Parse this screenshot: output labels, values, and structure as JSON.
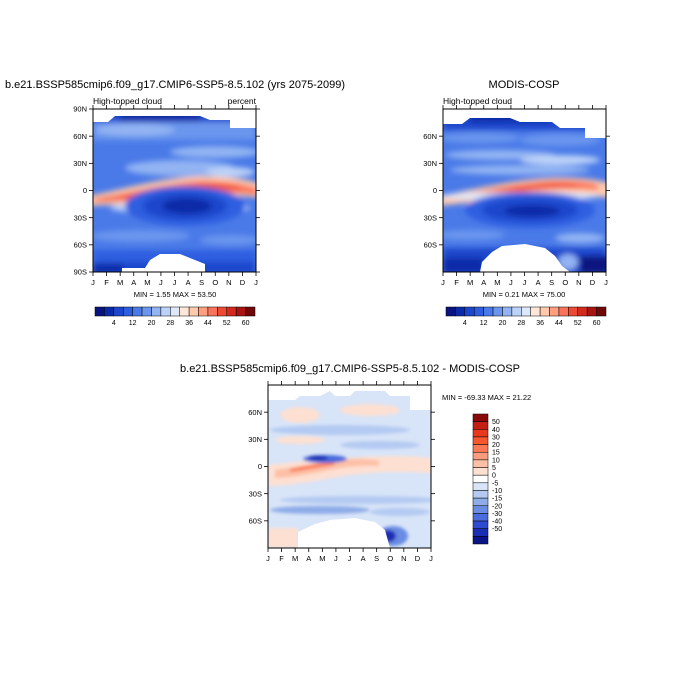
{
  "panels": [
    {
      "id": "model",
      "title": "b.e21.BSSP585cmip6.f09_g17.CMIP6-SSP5-8.5.102 (yrs 2075-2099)",
      "left_label": "High-topped cloud",
      "right_label": "percent",
      "stats": "MIN =   1.55 MAX =  53.50",
      "yticks": [
        "90N",
        "60N",
        "30N",
        "0",
        "30S",
        "60S",
        "90S"
      ]
    },
    {
      "id": "obs",
      "title": "MODIS-COSP",
      "left_label": "High-topped cloud",
      "right_label": "",
      "stats": "MIN =   0.21 MAX =  75.00",
      "yticks": [
        "60N",
        "30N",
        "0",
        "30S",
        "60S"
      ]
    },
    {
      "id": "diff",
      "title": "b.e21.BSSP585cmip6.f09_g17.CMIP6-SSP5-8.5.102 - MODIS-COSP",
      "left_label": "",
      "right_label": "",
      "stats": "MIN = -69.33 MAX =  21.22",
      "yticks": [
        "60N",
        "30N",
        "0",
        "30S",
        "60S"
      ]
    }
  ],
  "months": [
    "J",
    "F",
    "M",
    "A",
    "M",
    "J",
    "J",
    "A",
    "S",
    "O",
    "N",
    "D",
    "J"
  ],
  "colorbars": {
    "abs": {
      "labels": [
        "4",
        "12",
        "20",
        "28",
        "36",
        "44",
        "52",
        "60"
      ],
      "colors": [
        "#0a1480",
        "#0a2aa8",
        "#1c46cc",
        "#2e5ee0",
        "#4a7ae8",
        "#6b96ee",
        "#92b4f3",
        "#bcd2f8",
        "#dde8fa",
        "#ffe6d6",
        "#ffc9ad",
        "#ff9f80",
        "#fb7358",
        "#ee4a33",
        "#d42a1e",
        "#a8140f",
        "#700808"
      ]
    },
    "diff": {
      "labels": [
        "50",
        "40",
        "30",
        "20",
        "15",
        "10",
        "5",
        "0",
        "-5",
        "-10",
        "-15",
        "-20",
        "-30",
        "-40",
        "-50"
      ],
      "colors": [
        "#8a0a0a",
        "#c41e14",
        "#e8391e",
        "#f8562e",
        "#fb7a55",
        "#fc9c7e",
        "#fdc0a6",
        "#fde0d2",
        "#ffffff",
        "#d8e4f8",
        "#b4caf2",
        "#8eace8",
        "#6a8ce2",
        "#4a6cdc",
        "#2e4ad2",
        "#1a2eb4",
        "#0a1484"
      ]
    }
  },
  "chart_data": [
    {
      "type": "heatmap",
      "title": "b.e21.BSSP585cmip6.f09_g17.CMIP6-SSP5-8.5.102 (yrs 2075-2099)",
      "variable": "High-topped cloud",
      "units": "percent",
      "x": [
        "J",
        "F",
        "M",
        "A",
        "M",
        "J",
        "J",
        "A",
        "S",
        "O",
        "N",
        "D",
        "J"
      ],
      "y_ticks": [
        "90N",
        "60N",
        "30N",
        "0",
        "30S",
        "60S",
        "90S"
      ],
      "min": 1.55,
      "max": 53.5,
      "contour_levels": [
        4,
        8,
        12,
        16,
        20,
        24,
        28,
        32,
        36,
        40,
        44,
        48,
        52,
        56,
        60
      ]
    },
    {
      "type": "heatmap",
      "title": "MODIS-COSP",
      "variable": "High-topped cloud",
      "x": [
        "J",
        "F",
        "M",
        "A",
        "M",
        "J",
        "J",
        "A",
        "S",
        "O",
        "N",
        "D",
        "J"
      ],
      "y_ticks": [
        "60N",
        "30N",
        "0",
        "30S",
        "60S"
      ],
      "min": 0.21,
      "max": 75.0,
      "contour_levels": [
        4,
        8,
        12,
        16,
        20,
        24,
        28,
        32,
        36,
        40,
        44,
        48,
        52,
        56,
        60
      ]
    },
    {
      "type": "heatmap",
      "title": "b.e21.BSSP585cmip6.f09_g17.CMIP6-SSP5-8.5.102 - MODIS-COSP",
      "x": [
        "J",
        "F",
        "M",
        "A",
        "M",
        "J",
        "J",
        "A",
        "S",
        "O",
        "N",
        "D",
        "J"
      ],
      "y_ticks": [
        "60N",
        "30N",
        "0",
        "30S",
        "60S"
      ],
      "min": -69.33,
      "max": 21.22,
      "contour_levels": [
        -50,
        -40,
        -30,
        -20,
        -15,
        -10,
        -5,
        0,
        5,
        10,
        15,
        20,
        30,
        40,
        50
      ]
    }
  ]
}
